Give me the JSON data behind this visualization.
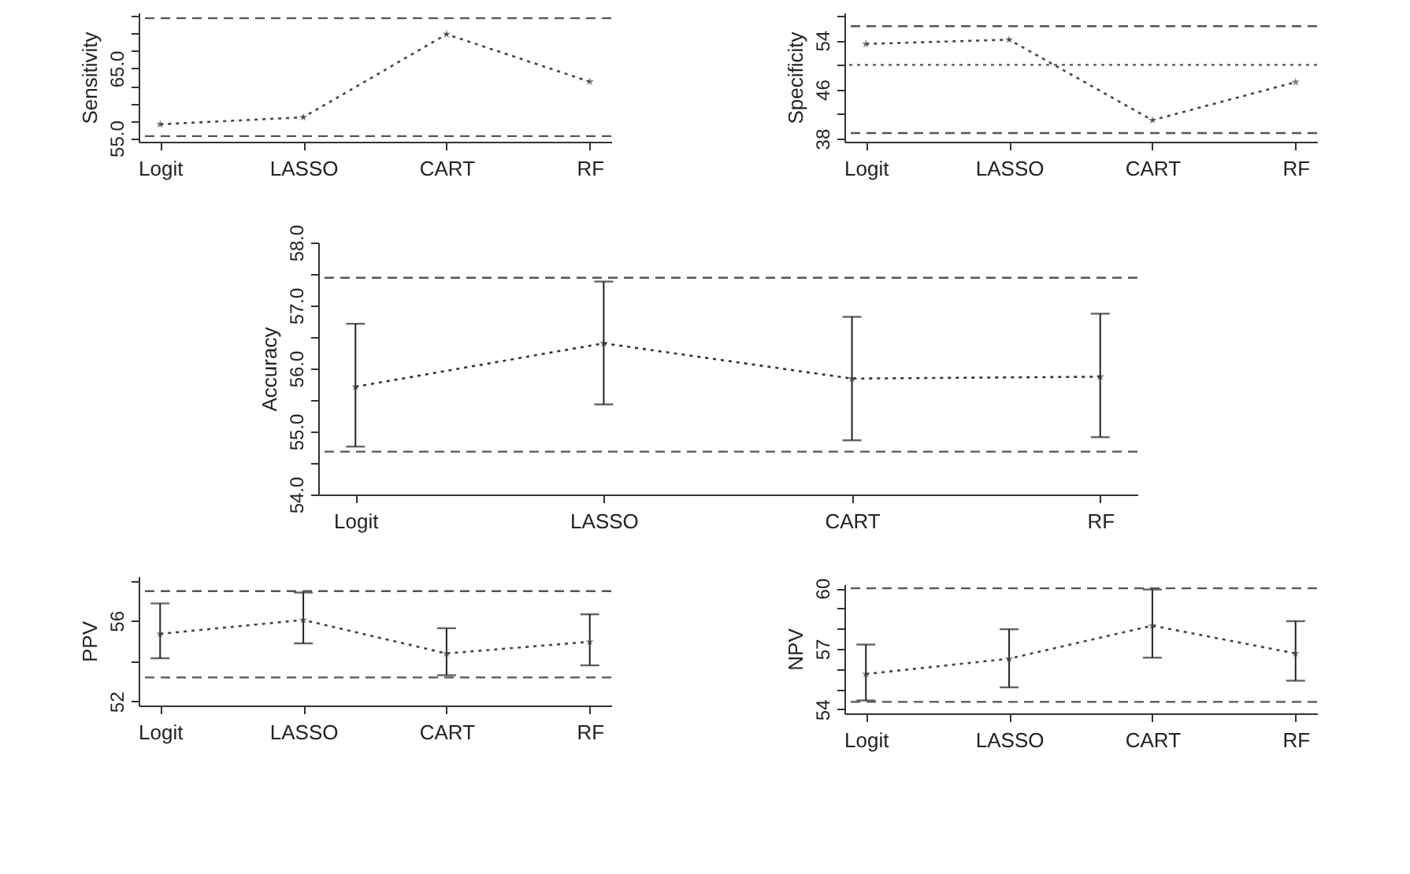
{
  "chart_data": [
    {
      "type": "line",
      "ylabel": "Sensitivity",
      "categories": [
        "Logit",
        "LASSO",
        "CART",
        "RF"
      ],
      "values": [
        57.0,
        58.0,
        69.9,
        63.1
      ],
      "color": "#444444",
      "marker": "star",
      "line_style": "dotted",
      "ylim": [
        54.5,
        73
      ],
      "yticks": [
        {
          "value": 55,
          "label": "55.0"
        },
        {
          "value": 57.5,
          "label": null
        },
        {
          "value": 60,
          "label": null
        },
        {
          "value": 62.5,
          "label": null
        },
        {
          "value": 65,
          "label": "65.0"
        },
        {
          "value": 67.5,
          "label": null
        },
        {
          "value": 70,
          "label": null
        },
        {
          "value": 72.5,
          "label": null
        }
      ],
      "ref_lines": [
        {
          "axis": "y",
          "value": 72.2,
          "line_style": "dashed",
          "color": "#555555"
        },
        {
          "axis": "y",
          "value": 55.3,
          "line_style": "dashed",
          "color": "#555555"
        }
      ]
    },
    {
      "type": "line",
      "ylabel": "Specificity",
      "categories": [
        "Logit",
        "LASSO",
        "CART",
        "RF"
      ],
      "values": [
        53.4,
        54.1,
        41.0,
        47.2
      ],
      "color": "#444444",
      "marker": "star",
      "line_style": "dotted",
      "ylim": [
        37.5,
        58.5
      ],
      "yticks": [
        38,
        {
          "value": 42,
          "label": null
        },
        46,
        {
          "value": 50,
          "label": null
        },
        54,
        {
          "value": 58,
          "label": null
        }
      ],
      "ref_lines": [
        {
          "axis": "y",
          "value": 56.3,
          "line_style": "dashed",
          "color": "#555555"
        },
        {
          "axis": "y",
          "value": 50.0,
          "line_style": "dotted",
          "color": "#555555"
        },
        {
          "axis": "y",
          "value": 38.9,
          "line_style": "dashed",
          "color": "#555555"
        }
      ]
    },
    {
      "type": "line",
      "ylabel": "Accuracy",
      "categories": [
        "Logit",
        "LASSO",
        "CART",
        "RF"
      ],
      "values": [
        55.71,
        56.4,
        55.84,
        55.87
      ],
      "errors": [
        [
          54.76,
          56.71
        ],
        [
          55.43,
          57.38
        ],
        [
          54.86,
          56.82
        ],
        [
          54.91,
          56.87
        ]
      ],
      "color": "#333333",
      "marker": "star",
      "line_style": "dotted",
      "ylim": [
        54,
        58
      ],
      "yticks": [
        {
          "value": 54,
          "label": "54.0"
        },
        {
          "value": 54.5,
          "label": null
        },
        {
          "value": 55,
          "label": "55.0"
        },
        {
          "value": 55.5,
          "label": null
        },
        {
          "value": 56,
          "label": "56.0"
        },
        {
          "value": 56.5,
          "label": null
        },
        {
          "value": 57,
          "label": "57.0"
        },
        {
          "value": 57.5,
          "label": null
        },
        {
          "value": 58,
          "label": "58.0"
        }
      ],
      "ref_lines": [
        {
          "axis": "y",
          "value": 57.44,
          "line_style": "dashed",
          "color": "#555555"
        },
        {
          "axis": "y",
          "value": 54.68,
          "line_style": "dashed",
          "color": "#555555"
        }
      ]
    },
    {
      "type": "line",
      "ylabel": "PPV",
      "categories": [
        "Logit",
        "LASSO",
        "CART",
        "RF"
      ],
      "values": [
        55.35,
        56.04,
        54.38,
        54.96
      ],
      "errors": [
        [
          54.14,
          56.86
        ],
        [
          54.88,
          57.4
        ],
        [
          53.3,
          55.63
        ],
        [
          53.79,
          56.32
        ]
      ],
      "color": "#444444",
      "marker": "star",
      "line_style": "dotted",
      "ylim": [
        51.8,
        58.2
      ],
      "yticks": [
        52,
        {
          "value": 54,
          "label": null
        },
        56,
        {
          "value": 58,
          "label": null
        }
      ],
      "ref_lines": [
        {
          "axis": "y",
          "value": 57.47,
          "line_style": "dashed",
          "color": "#555555"
        },
        {
          "axis": "y",
          "value": 53.19,
          "line_style": "dashed",
          "color": "#555555"
        }
      ]
    },
    {
      "type": "line",
      "ylabel": "NPV",
      "categories": [
        "Logit",
        "LASSO",
        "CART",
        "RF"
      ],
      "values": [
        55.75,
        56.51,
        58.15,
        56.77
      ],
      "errors": [
        [
          54.44,
          57.21
        ],
        [
          55.09,
          57.97
        ],
        [
          56.56,
          59.94
        ],
        [
          55.42,
          58.37
        ]
      ],
      "color": "#444444",
      "marker": "star",
      "line_style": "dotted",
      "ylim": [
        53.8,
        60.2
      ],
      "yticks": [
        54,
        {
          "value": 55,
          "label": null
        },
        {
          "value": 56,
          "label": null
        },
        57,
        {
          "value": 58,
          "label": null
        },
        {
          "value": 59,
          "label": null
        },
        60
      ],
      "ref_lines": [
        {
          "axis": "y",
          "value": 60.0,
          "line_style": "dashed",
          "color": "#555555"
        },
        {
          "axis": "y",
          "value": 54.37,
          "line_style": "dashed",
          "color": "#555555"
        }
      ]
    }
  ]
}
